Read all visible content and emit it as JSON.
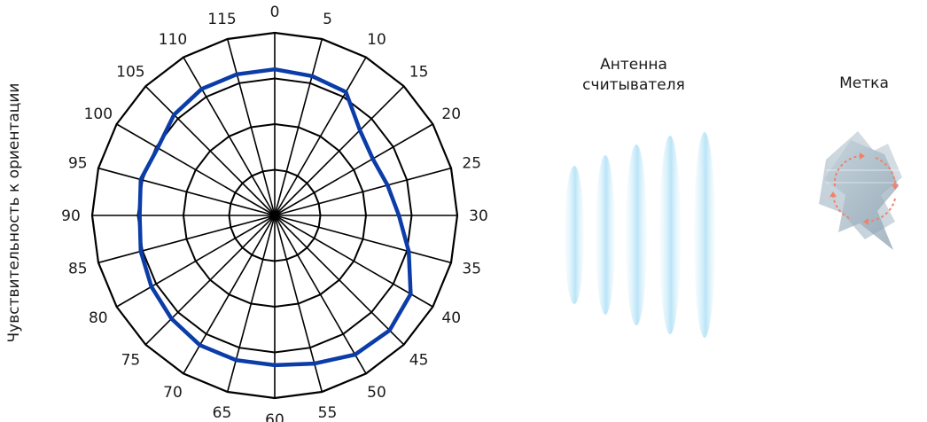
{
  "side_label": "Чувствительность к ориентации",
  "antenna_label": {
    "line1": "Антенна",
    "line2": "считывателя"
  },
  "tag_label": "Метка",
  "colors": {
    "pattern": "#0b3ca8",
    "grid": "#000000",
    "wave": "#bfe6f7",
    "tag_blue": "#8fb0c6",
    "tag_grey": "#a3b4bf",
    "rotation_arrow": "#f0826a"
  },
  "chart_data": {
    "type": "polar-line",
    "angle_labels": [
      "0",
      "5",
      "10",
      "15",
      "20",
      "25",
      "30",
      "35",
      "40",
      "45",
      "50",
      "55",
      "60",
      "65",
      "70",
      "75",
      "80",
      "85",
      "90",
      "95",
      "100",
      "105",
      "110",
      "115"
    ],
    "ring_count": 4,
    "series": [
      {
        "values": [
          0.8,
          0.79,
          0.78,
          0.66,
          0.62,
          0.64,
          0.68,
          0.76,
          0.86,
          0.89,
          0.88,
          0.84,
          0.82,
          0.82,
          0.82,
          0.8,
          0.78,
          0.76,
          0.74,
          0.76,
          0.74,
          0.78,
          0.8,
          0.8
        ]
      }
    ]
  }
}
